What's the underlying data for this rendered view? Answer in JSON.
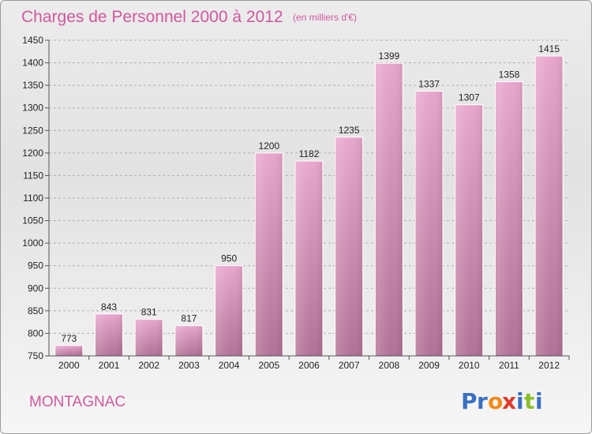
{
  "title": "Charges de Personnel 2000 à 2012",
  "unit": "(en milliers d'€)",
  "commune": "MONTAGNAC",
  "logo_text": "Proxiti",
  "logo_letters": [
    {
      "ch": "P",
      "color": "#3a6fc0"
    },
    {
      "ch": "r",
      "color": "#3a6fc0"
    },
    {
      "ch": "o",
      "color": "#f08a1c"
    },
    {
      "ch": "x",
      "color": "#e0382c"
    },
    {
      "ch": "i",
      "color": "#3a6fc0"
    },
    {
      "ch": "t",
      "color": "#8bbd2a"
    },
    {
      "ch": "i",
      "color": "#3a6fc0"
    }
  ],
  "colors": {
    "bar_top": "#e8a6cd",
    "bar_bottom": "#b27196",
    "accent": "#d0589e",
    "grid": "#b0b0b0"
  },
  "chart_data": {
    "type": "bar",
    "categories": [
      "2000",
      "2001",
      "2002",
      "2003",
      "2004",
      "2005",
      "2006",
      "2007",
      "2008",
      "2009",
      "2010",
      "2011",
      "2012"
    ],
    "values": [
      773,
      843,
      831,
      817,
      950,
      1200,
      1182,
      1235,
      1399,
      1337,
      1307,
      1358,
      1415
    ],
    "ylim": [
      750,
      1450
    ],
    "yticks": [
      750,
      800,
      850,
      900,
      950,
      1000,
      1050,
      1100,
      1150,
      1200,
      1250,
      1300,
      1350,
      1400,
      1450
    ],
    "grid": "horizontal dashed",
    "data_labels": true
  }
}
